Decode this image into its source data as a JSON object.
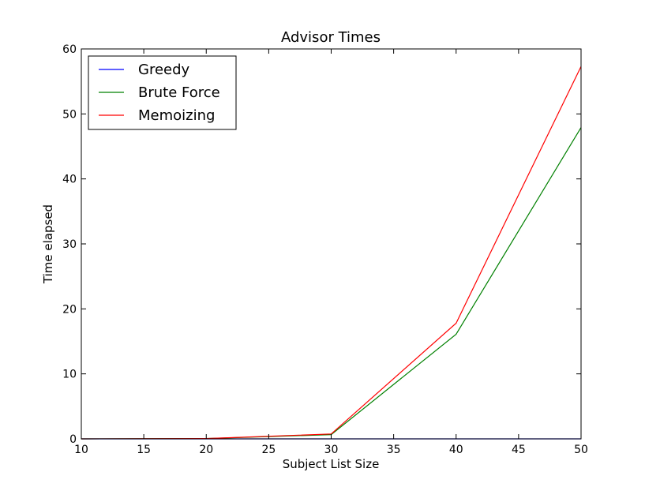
{
  "chart_data": {
    "type": "line",
    "title": "Advisor Times",
    "xlabel": "Subject List Size",
    "ylabel": "Time elapsed",
    "xlim": [
      10,
      50
    ],
    "ylim": [
      0,
      60
    ],
    "x_ticks": [
      10,
      15,
      20,
      25,
      30,
      35,
      40,
      45,
      50
    ],
    "y_ticks": [
      0,
      10,
      20,
      30,
      40,
      50,
      60
    ],
    "grid": false,
    "legend_position": "top-left",
    "x": [
      10,
      20,
      30,
      40,
      50
    ],
    "series": [
      {
        "name": "Greedy",
        "color": "#0000ff",
        "values": [
          0.0,
          0.0,
          0.0,
          0.0,
          0.0
        ]
      },
      {
        "name": "Brute Force",
        "color": "#008000",
        "values": [
          0.0,
          0.05,
          0.65,
          16.1,
          47.9
        ]
      },
      {
        "name": "Memoizing",
        "color": "#ff0000",
        "values": [
          0.0,
          0.05,
          0.75,
          17.8,
          57.3
        ]
      }
    ]
  }
}
